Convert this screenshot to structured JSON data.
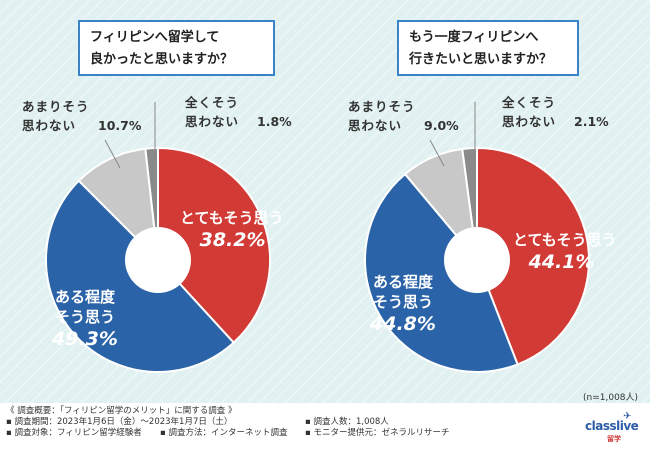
{
  "respondents_note": "(n=1,008人)",
  "colors": {
    "very": "#d23a36",
    "somewhat": "#2b63a8",
    "not_much": "#c8c8c8",
    "not_at_all": "#8a8a8a",
    "question_border": "#3a83c6"
  },
  "chart_data": [
    {
      "type": "pie",
      "title": [
        "フィリピンへ留学して",
        "良かったと思いますか？"
      ],
      "slices": [
        {
          "key": "very",
          "label": "とてもそう思う",
          "label_lines": [
            "とてもそう思う"
          ],
          "value": 38.2,
          "pct": "38.2%"
        },
        {
          "key": "somewhat",
          "label": "ある程度そう思う",
          "label_lines": [
            "ある程度",
            "そう思う"
          ],
          "value": 49.3,
          "pct": "49.3%"
        },
        {
          "key": "not_much",
          "label": "あまりそう思わない",
          "label_lines": [
            "あまりそう",
            "思わない"
          ],
          "value": 10.7,
          "pct": "10.7%"
        },
        {
          "key": "not_at_all",
          "label": "全くそう思わない",
          "label_lines": [
            "全くそう",
            "思わない"
          ],
          "value": 1.8,
          "pct": "1.8%"
        }
      ]
    },
    {
      "type": "pie",
      "title": [
        "もう一度フィリピンへ",
        "行きたいと思いますか？"
      ],
      "slices": [
        {
          "key": "very",
          "label": "とてもそう思う",
          "label_lines": [
            "とてもそう思う"
          ],
          "value": 44.1,
          "pct": "44.1%"
        },
        {
          "key": "somewhat",
          "label": "ある程度そう思う",
          "label_lines": [
            "ある程度",
            "そう思う"
          ],
          "value": 44.8,
          "pct": "44.8%"
        },
        {
          "key": "not_much",
          "label": "あまりそう思わない",
          "label_lines": [
            "あまりそう",
            "思わない"
          ],
          "value": 9.0,
          "pct": "9.0%"
        },
        {
          "key": "not_at_all",
          "label": "全くそう思わない",
          "label_lines": [
            "全くそう",
            "思わない"
          ],
          "value": 2.1,
          "pct": "2.1%"
        }
      ]
    }
  ],
  "footer": {
    "overview": "《 調査概要：「フィリピン留学のメリット」に関する調査 》",
    "period": "▪ 調査期間：2023年1月6日（金）～2023年1月7日（土）",
    "target": "▪ 調査対象：フィリピン留学経験者",
    "method": "▪ 調査方法：インターネット調査",
    "count": "▪ 調査人数：1,008人",
    "provider": "▪ モニター提供元：ゼネラルリサーチ"
  },
  "logo": {
    "name": "classlive",
    "sub": "留学"
  }
}
